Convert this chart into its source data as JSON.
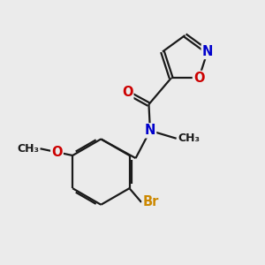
{
  "background_color": "#ebebeb",
  "bond_color": "#1a1a1a",
  "bond_width": 1.6,
  "atom_colors": {
    "O": "#cc0000",
    "N": "#0000cc",
    "Br": "#cc8800",
    "C": "#1a1a1a"
  },
  "font_size_atom": 10.5,
  "font_size_methyl": 9.0,
  "font_size_methoxy": 9.0
}
